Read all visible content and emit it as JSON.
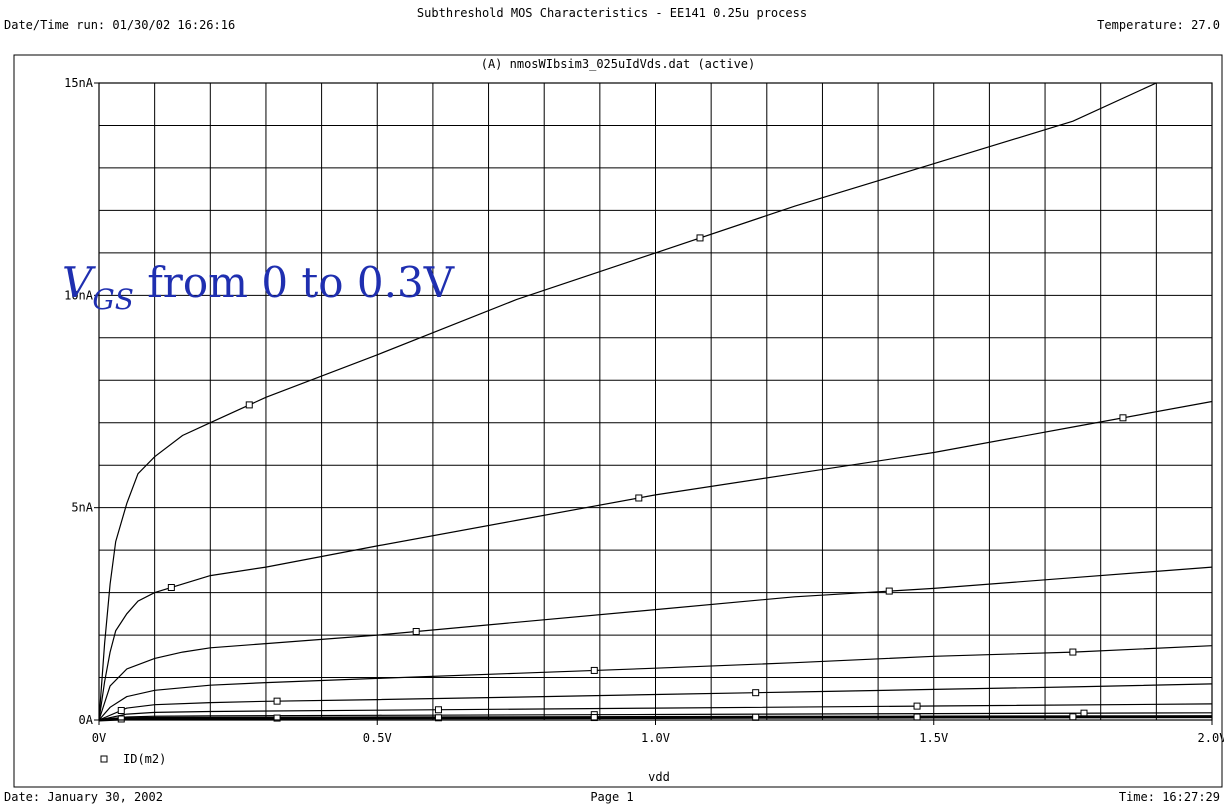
{
  "header": {
    "title": "Subthreshold MOS Characteristics - EE141 0.25u process",
    "datetime": "Date/Time run: 01/30/02 16:26:16",
    "temperature": "Temperature: 27.0"
  },
  "footer": {
    "date": "Date: January 30, 2002",
    "page": "Page 1",
    "time": "Time: 16:27:29"
  },
  "annotation": {
    "v": "V",
    "sub": "GS",
    "rest": " from 0 to 0.3V"
  },
  "colors": {
    "annotation": "#1f2fb0",
    "axes": "#000000",
    "grid": "#000000"
  },
  "chart_data": {
    "type": "line",
    "title": "(A) nmosWIbsim3_025uIdVds.dat (active)",
    "xlabel": "vdd",
    "ylabel": "",
    "xlim": [
      0,
      2.0
    ],
    "ylim": [
      0,
      15
    ],
    "x_ticks": [
      0,
      0.5,
      1.0,
      1.5,
      2.0
    ],
    "x_tick_labels": [
      "0V",
      "0.5V",
      "1.0V",
      "1.5V",
      "2.0V"
    ],
    "y_ticks": [
      0,
      5,
      10,
      15
    ],
    "y_tick_labels": [
      "0A",
      "5nA",
      "10nA",
      "15nA"
    ],
    "grid": true,
    "legend": {
      "position": "bottom-left",
      "entries": [
        "ID(m2)"
      ]
    },
    "marker_x": [
      0.04,
      0.32,
      0.61,
      0.89,
      1.18,
      1.47,
      1.75
    ],
    "series": [
      {
        "x": [
          0,
          0.01,
          0.02,
          0.03,
          0.05,
          0.07,
          0.1,
          0.15,
          0.2,
          0.3,
          0.5,
          0.75,
          1.0,
          1.25,
          1.5,
          1.75,
          1.9
        ],
        "values": [
          0,
          1.8,
          3.2,
          4.2,
          5.1,
          5.8,
          6.2,
          6.7,
          7.0,
          7.6,
          8.6,
          9.9,
          11.0,
          12.1,
          13.1,
          14.1,
          15.0
        ],
        "markers": [
          0.27,
          1.08
        ]
      },
      {
        "x": [
          0,
          0.01,
          0.02,
          0.03,
          0.05,
          0.07,
          0.1,
          0.15,
          0.2,
          0.3,
          0.5,
          0.75,
          1.0,
          1.25,
          1.5,
          1.75,
          2.0
        ],
        "values": [
          0,
          0.9,
          1.6,
          2.1,
          2.5,
          2.8,
          3.0,
          3.2,
          3.4,
          3.6,
          4.1,
          4.7,
          5.3,
          5.8,
          6.3,
          6.9,
          7.5
        ],
        "markers": [
          0.13,
          0.97,
          1.84
        ]
      },
      {
        "x": [
          0,
          0.02,
          0.05,
          0.1,
          0.15,
          0.2,
          0.3,
          0.5,
          0.75,
          1.0,
          1.25,
          1.5,
          1.75,
          2.0
        ],
        "values": [
          0,
          0.8,
          1.2,
          1.45,
          1.6,
          1.7,
          1.8,
          2.0,
          2.3,
          2.6,
          2.9,
          3.1,
          3.35,
          3.6
        ],
        "markers": [
          0.57,
          1.42
        ]
      },
      {
        "x": [
          0,
          0.02,
          0.05,
          0.1,
          0.2,
          0.3,
          0.5,
          0.75,
          1.0,
          1.25,
          1.5,
          1.75,
          2.0
        ],
        "values": [
          0,
          0.3,
          0.55,
          0.7,
          0.82,
          0.88,
          0.98,
          1.1,
          1.22,
          1.35,
          1.5,
          1.6,
          1.75
        ],
        "markers": [
          0.89,
          1.75
        ]
      },
      {
        "x": [
          0,
          0.05,
          0.1,
          0.2,
          0.3,
          0.5,
          0.75,
          1.0,
          1.25,
          1.5,
          1.75,
          2.0
        ],
        "values": [
          0,
          0.28,
          0.36,
          0.41,
          0.44,
          0.48,
          0.54,
          0.6,
          0.66,
          0.72,
          0.78,
          0.85
        ],
        "markers": [
          0.04,
          0.32,
          1.18
        ]
      },
      {
        "x": [
          0,
          0.05,
          0.1,
          0.2,
          0.5,
          1.0,
          1.5,
          2.0
        ],
        "values": [
          0,
          0.14,
          0.18,
          0.2,
          0.23,
          0.28,
          0.33,
          0.38
        ],
        "markers": [
          0.61,
          1.47
        ]
      },
      {
        "x": [
          0,
          0.05,
          0.1,
          0.2,
          0.5,
          1.0,
          1.5,
          2.0
        ],
        "values": [
          0,
          0.07,
          0.09,
          0.1,
          0.11,
          0.13,
          0.15,
          0.17
        ],
        "markers": [
          0.89,
          1.77
        ]
      },
      {
        "x": [
          0,
          0.05,
          0.1,
          0.5,
          1.0,
          1.5,
          2.0
        ],
        "values": [
          0,
          0.03,
          0.04,
          0.05,
          0.06,
          0.07,
          0.08
        ],
        "markers": [
          0.04,
          0.32,
          0.61,
          0.89,
          1.18,
          1.47,
          1.75
        ]
      }
    ]
  }
}
